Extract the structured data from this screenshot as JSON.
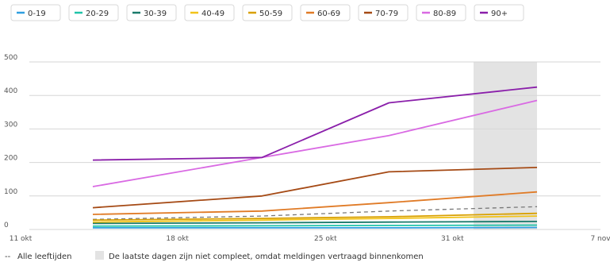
{
  "chart_data": {
    "type": "line",
    "x_ticks": [
      "11 okt",
      "18 okt",
      "25 okt",
      "31 okt",
      "7 nov"
    ],
    "y_ticks": [
      "0",
      "100",
      "200",
      "300",
      "400",
      "500"
    ],
    "ylim": [
      0,
      500
    ],
    "grid": true,
    "legend_position": "top",
    "x": [
      "14 okt",
      "22 okt",
      "28 okt",
      "4 nov"
    ],
    "series": [
      {
        "name": "0-19",
        "color": "#2f9fe0",
        "values": [
          5,
          5,
          5,
          6
        ]
      },
      {
        "name": "20-29",
        "color": "#1fc3a8",
        "values": [
          10,
          11,
          12,
          13
        ]
      },
      {
        "name": "30-39",
        "color": "#1a7a6b",
        "values": [
          18,
          20,
          22,
          24
        ]
      },
      {
        "name": "40-49",
        "color": "#f2c31a",
        "values": [
          22,
          28,
          33,
          40
        ]
      },
      {
        "name": "50-59",
        "color": "#d9a000",
        "values": [
          28,
          33,
          38,
          48
        ]
      },
      {
        "name": "60-69",
        "color": "#e07b27",
        "values": [
          45,
          55,
          80,
          112
        ]
      },
      {
        "name": "70-79",
        "color": "#a54a15",
        "values": [
          65,
          100,
          172,
          185
        ]
      },
      {
        "name": "80-89",
        "color": "#d96ae3",
        "values": [
          128,
          215,
          280,
          385
        ]
      },
      {
        "name": "90+",
        "color": "#8a1faa",
        "values": [
          207,
          215,
          378,
          425
        ]
      }
    ],
    "reference": {
      "name": "Alle leeftijden",
      "color": "#777777",
      "values": [
        30,
        40,
        55,
        68
      ]
    },
    "incomplete_region": {
      "from": "1 nov",
      "to": "4 nov",
      "label": "De laatste dagen zijn niet compleet, omdat meldingen vertraagd binnenkomen"
    }
  },
  "legend_symbol": {
    "dash": "--",
    "box": "■"
  }
}
